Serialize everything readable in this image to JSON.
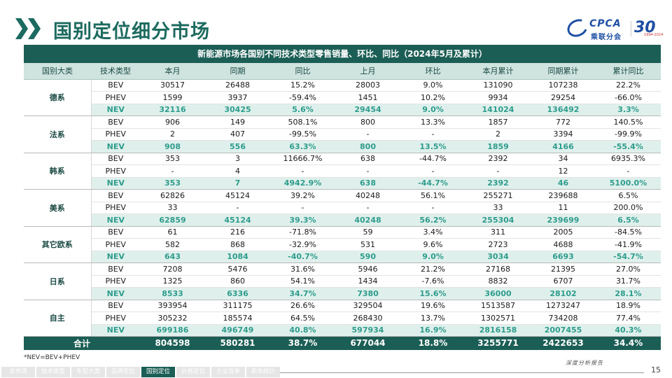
{
  "page": {
    "title": "国别定位细分市场",
    "footnote": "*NEV=BEV+PHEV",
    "page_number": "15",
    "report_label": "深度分析报告"
  },
  "logo": {
    "brand": "CPCA",
    "brand_cn": "乘联分会",
    "anniversary": "30",
    "anniversary_sub": "1994-2024"
  },
  "colors": {
    "primary": "#1b5e55",
    "accent": "#2e9c8c",
    "header_bg": "#cfe3df",
    "nev_bg": "#dff0ec"
  },
  "table": {
    "caption": "新能源市场各国别不同技术类型零售销量、环比、同比（2024年5月及累计）",
    "headers": [
      "国别大类",
      "技术类型",
      "本月",
      "同期",
      "同比",
      "上月",
      "环比",
      "本月累计",
      "同期累计",
      "累计同比"
    ],
    "groups": [
      {
        "region": "德系",
        "rows": [
          [
            "BEV",
            "30517",
            "26488",
            "15.2%",
            "28003",
            "9.0%",
            "131090",
            "107238",
            "22.2%"
          ],
          [
            "PHEV",
            "1599",
            "3937",
            "-59.4%",
            "1451",
            "10.2%",
            "9934",
            "29254",
            "-66.0%"
          ],
          [
            "NEV",
            "32116",
            "30425",
            "5.6%",
            "29454",
            "9.0%",
            "141024",
            "136492",
            "3.3%"
          ]
        ]
      },
      {
        "region": "法系",
        "rows": [
          [
            "BEV",
            "906",
            "149",
            "508.1%",
            "800",
            "13.3%",
            "1857",
            "772",
            "140.5%"
          ],
          [
            "PHEV",
            "2",
            "407",
            "-99.5%",
            "-",
            "-",
            "2",
            "3394",
            "-99.9%"
          ],
          [
            "NEV",
            "908",
            "556",
            "63.3%",
            "800",
            "13.5%",
            "1859",
            "4166",
            "-55.4%"
          ]
        ]
      },
      {
        "region": "韩系",
        "rows": [
          [
            "BEV",
            "353",
            "3",
            "11666.7%",
            "638",
            "-44.7%",
            "2392",
            "34",
            "6935.3%"
          ],
          [
            "PHEV",
            "-",
            "4",
            "-",
            "-",
            "-",
            "-",
            "12",
            "-"
          ],
          [
            "NEV",
            "353",
            "7",
            "4942.9%",
            "638",
            "-44.7%",
            "2392",
            "46",
            "5100.0%"
          ]
        ]
      },
      {
        "region": "美系",
        "rows": [
          [
            "BEV",
            "62826",
            "45124",
            "39.2%",
            "40248",
            "56.1%",
            "255271",
            "239688",
            "6.5%"
          ],
          [
            "PHEV",
            "33",
            "-",
            "-",
            "-",
            "-",
            "33",
            "11",
            "200.0%"
          ],
          [
            "NEV",
            "62859",
            "45124",
            "39.3%",
            "40248",
            "56.2%",
            "255304",
            "239699",
            "6.5%"
          ]
        ]
      },
      {
        "region": "其它欧系",
        "rows": [
          [
            "BEV",
            "61",
            "216",
            "-71.8%",
            "59",
            "3.4%",
            "311",
            "2005",
            "-84.5%"
          ],
          [
            "PHEV",
            "582",
            "868",
            "-32.9%",
            "531",
            "9.6%",
            "2723",
            "4688",
            "-41.9%"
          ],
          [
            "NEV",
            "643",
            "1084",
            "-40.7%",
            "590",
            "9.0%",
            "3034",
            "6693",
            "-54.7%"
          ]
        ]
      },
      {
        "region": "日系",
        "rows": [
          [
            "BEV",
            "7208",
            "5476",
            "31.6%",
            "5946",
            "21.2%",
            "27168",
            "21395",
            "27.0%"
          ],
          [
            "PHEV",
            "1325",
            "860",
            "54.1%",
            "1434",
            "-7.6%",
            "8832",
            "6707",
            "31.7%"
          ],
          [
            "NEV",
            "8533",
            "6336",
            "34.7%",
            "7380",
            "15.6%",
            "36000",
            "28102",
            "28.1%"
          ]
        ]
      },
      {
        "region": "自主",
        "rows": [
          [
            "BEV",
            "393954",
            "311175",
            "26.6%",
            "329504",
            "19.6%",
            "1513587",
            "1273247",
            "18.9%"
          ],
          [
            "PHEV",
            "305232",
            "185574",
            "64.5%",
            "268430",
            "13.7%",
            "1302571",
            "734208",
            "77.4%"
          ],
          [
            "NEV",
            "699186",
            "496749",
            "40.8%",
            "597934",
            "16.9%",
            "2816158",
            "2007455",
            "40.3%"
          ]
        ]
      }
    ],
    "total": [
      "合计",
      "804598",
      "580281",
      "38.7%",
      "677044",
      "18.8%",
      "3255771",
      "2422653",
      "34.4%"
    ]
  },
  "bottom_nav": {
    "tabs": [
      "总市场",
      "技术类型",
      "车型大类",
      "品牌定位",
      "国别定位",
      "价格定位",
      "企业竞争",
      "新车统计"
    ],
    "active_index": 4
  }
}
